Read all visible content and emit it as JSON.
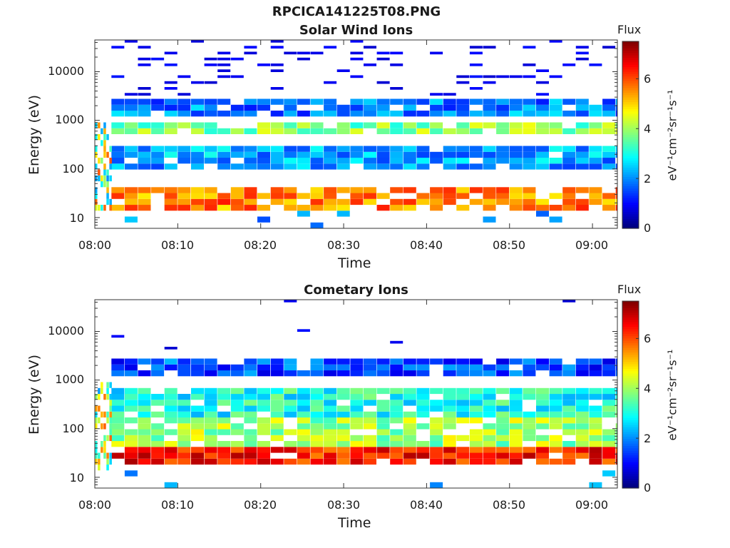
{
  "window": {
    "title": "RPCICA141225T08.PNG"
  },
  "colorbar": {
    "label": "Flux",
    "unit_label": "eV⁻¹cm⁻²sr⁻¹s⁻¹",
    "ticks": [
      "0",
      "2",
      "4",
      "6"
    ],
    "range": [
      0,
      7.5
    ],
    "colormap": "jet",
    "colors": [
      "#00007f",
      "#0000ff",
      "#007fff",
      "#00ffff",
      "#7fff7f",
      "#ffff00",
      "#ff7f00",
      "#ff0000",
      "#7f0000"
    ]
  },
  "chart_data": [
    {
      "type": "heatmap",
      "title": "Solar Wind Ions",
      "xlabel": "Time",
      "ylabel": "Energy (eV)",
      "x_ticks": [
        "08:00",
        "08:10",
        "08:20",
        "08:30",
        "08:40",
        "08:50",
        "09:00"
      ],
      "y_ticks": [
        "10",
        "100",
        "1000",
        "10000"
      ],
      "y_scale": "log",
      "ylim": [
        6,
        45000
      ],
      "xlim_minutes": [
        0,
        63
      ],
      "column_interval_minutes": 1.6,
      "dominant_bands": [
        {
          "energy_range": [
            15,
            40
          ],
          "flux": 5.6
        },
        {
          "energy_range": [
            500,
            800
          ],
          "flux": 3.8
        },
        {
          "energy_range": [
            100,
            300
          ],
          "flux": 2.2
        },
        {
          "energy_range": [
            1200,
            3000
          ],
          "flux": 1.9
        }
      ]
    },
    {
      "type": "heatmap",
      "title": "Cometary Ions",
      "xlabel": "Time",
      "ylabel": "Energy (eV)",
      "x_ticks": [
        "08:00",
        "08:10",
        "08:20",
        "08:30",
        "08:40",
        "08:50",
        "09:00"
      ],
      "y_ticks": [
        "10",
        "100",
        "1000",
        "10000"
      ],
      "y_scale": "log",
      "ylim": [
        6,
        45000
      ],
      "xlim_minutes": [
        0,
        63
      ],
      "column_interval_minutes": 1.6,
      "dominant_bands": [
        {
          "energy_range": [
            20,
            40
          ],
          "flux": 6.4
        },
        {
          "energy_range": [
            40,
            150
          ],
          "flux": 4.0
        },
        {
          "energy_range": [
            150,
            700
          ],
          "flux": 3.0
        },
        {
          "energy_range": [
            1200,
            3000
          ],
          "flux": 1.5
        }
      ]
    }
  ]
}
